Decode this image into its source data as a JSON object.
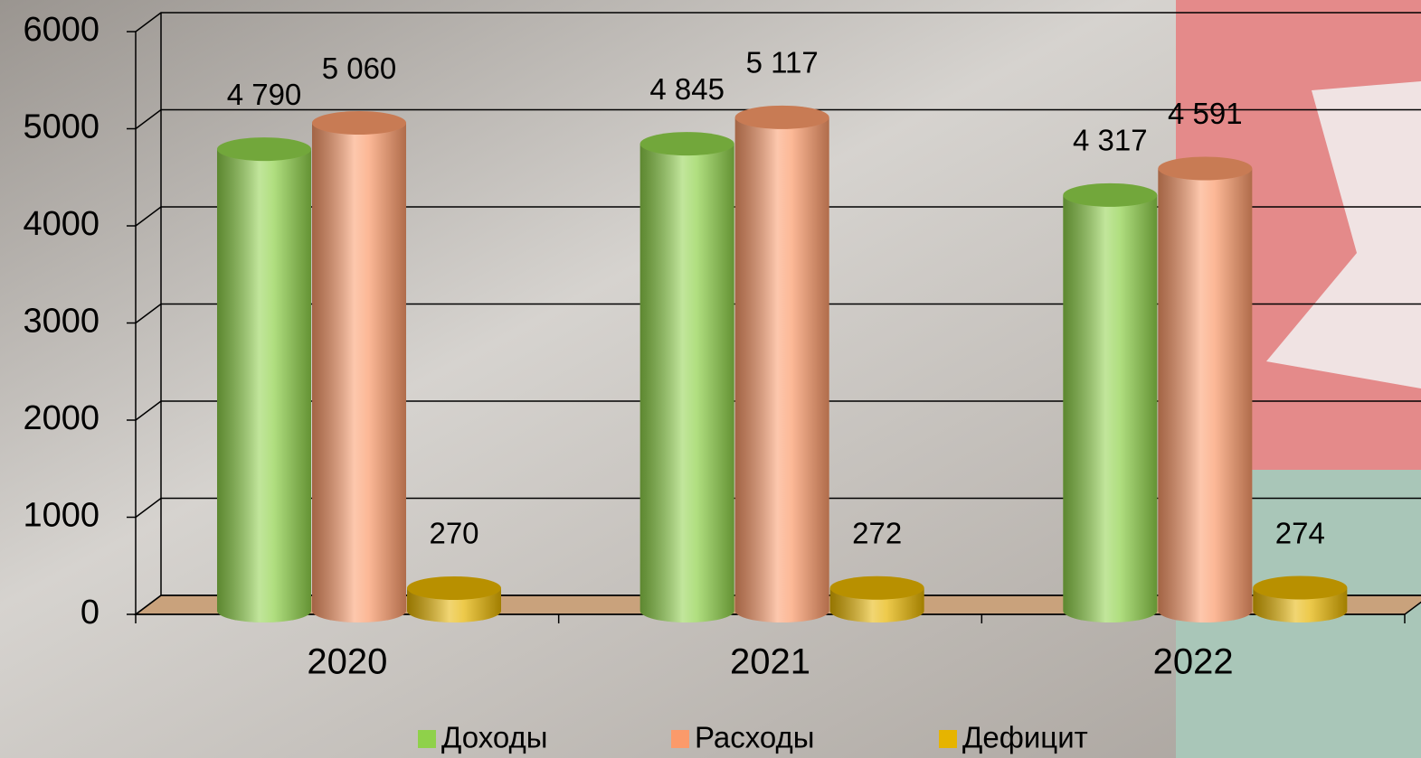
{
  "chart_data": {
    "type": "bar3d",
    "categories": [
      "2020",
      "2021",
      "2022"
    ],
    "series": [
      {
        "name": "Доходы",
        "color": "#8fd14a",
        "values": [
          4790,
          4845,
          4317
        ],
        "value_labels": [
          "4 790",
          "4 845",
          "4 317"
        ]
      },
      {
        "name": "Расходы",
        "color": "#fb9a6a",
        "values": [
          5060,
          5117,
          4591
        ],
        "value_labels": [
          "5 060",
          "5 117",
          "4 591"
        ]
      },
      {
        "name": "Дефицит",
        "color": "#e6b400",
        "values": [
          270,
          272,
          274
        ],
        "value_labels": [
          "270",
          "272",
          "274"
        ]
      }
    ],
    "ylim": [
      0,
      6000
    ],
    "yticks": [
      0,
      1000,
      2000,
      3000,
      4000,
      5000,
      6000
    ],
    "grid": true,
    "legend": "bottom"
  }
}
